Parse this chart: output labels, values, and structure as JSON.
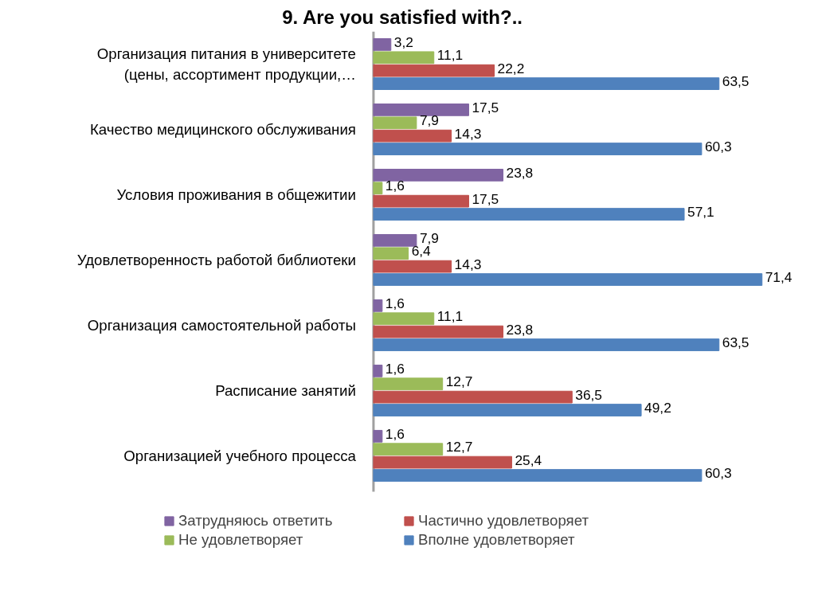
{
  "chart_data": {
    "type": "bar",
    "orientation": "horizontal",
    "title": "9. Are you satisfied with?..",
    "categories": [
      "Организация питания в университете\n(цены, ассортимент продукции,…",
      "Качество медицинского обслуживания",
      "Условия проживания в общежитии",
      "Удовлетворенность работой библиотеки",
      "Организация самостоятельной работы",
      "Расписание занятий",
      "Организацией учебного процесса"
    ],
    "series": [
      {
        "name": "Затрудняюсь ответить",
        "color": "#8064a2",
        "values": [
          3.2,
          17.5,
          23.8,
          7.9,
          1.6,
          1.6,
          1.6
        ],
        "value_labels": [
          "3,2",
          "17,5",
          "23,8",
          "7,9",
          "1,6",
          "1,6",
          "1,6"
        ]
      },
      {
        "name": "Не удовлетворяет",
        "color": "#9bbb59",
        "values": [
          11.1,
          7.9,
          1.6,
          6.4,
          11.1,
          12.7,
          12.7
        ],
        "value_labels": [
          "11,1",
          "7,9",
          "1,6",
          "6,4",
          "11,1",
          "12,7",
          "12,7"
        ]
      },
      {
        "name": "Частично удовлетворяет",
        "color": "#c0504d",
        "values": [
          22.2,
          14.3,
          17.5,
          14.3,
          23.8,
          36.5,
          25.4
        ],
        "value_labels": [
          "22,2",
          "14,3",
          "17,5",
          "14,3",
          "23,8",
          "36,5",
          "25,4"
        ]
      },
      {
        "name": "Вполне удовлетворяет",
        "color": "#4f81bd",
        "values": [
          63.5,
          60.3,
          57.1,
          71.4,
          63.5,
          49.2,
          60.3
        ],
        "value_labels": [
          "63,5",
          "60,3",
          "57,1",
          "71,4",
          "63,5",
          "49,2",
          "60,3"
        ]
      }
    ],
    "legend": "bottom",
    "tick_labels": "y"
  }
}
